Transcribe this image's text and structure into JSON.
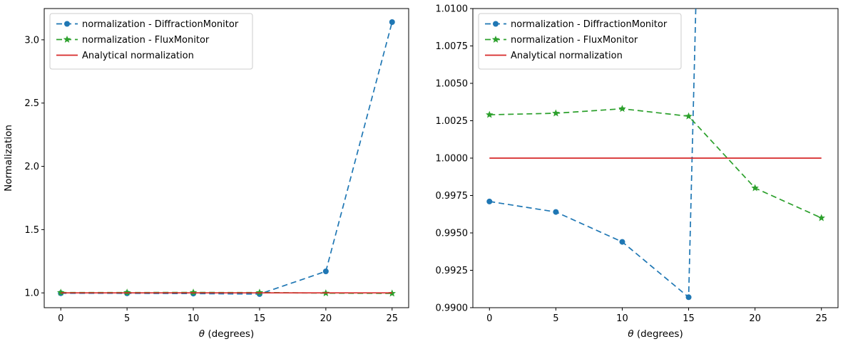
{
  "figure": {
    "background": "#ffffff"
  },
  "chart_data": [
    {
      "type": "line",
      "title": "",
      "xlabel": "θ (degrees)",
      "ylabel": "Normalization",
      "xlim": [
        -1.25,
        26.25
      ],
      "ylim": [
        0.883,
        3.247
      ],
      "grid": false,
      "legend_position": "upper-left",
      "x": [
        0,
        5,
        10,
        15,
        20,
        25
      ],
      "xticks": {
        "values": [
          0,
          5,
          10,
          15,
          20,
          25
        ],
        "labels": [
          "0",
          "5",
          "10",
          "15",
          "20",
          "25"
        ]
      },
      "yticks": {
        "values": [
          1.0,
          1.5,
          2.0,
          2.5,
          3.0
        ],
        "labels": [
          "1.0",
          "1.5",
          "2.0",
          "2.5",
          "3.0"
        ]
      },
      "series": [
        {
          "name": "normalization - DiffractionMonitor",
          "color": "#1f77b4",
          "linestyle": "dashed",
          "marker": "circle",
          "values": [
            0.9971,
            0.9964,
            0.9944,
            0.9907,
            1.17,
            3.14
          ]
        },
        {
          "name": "normalization - FluxMonitor",
          "color": "#2ca02c",
          "linestyle": "dashed",
          "marker": "star",
          "values": [
            1.0029,
            1.003,
            1.0033,
            1.0028,
            0.998,
            0.996
          ]
        },
        {
          "name": "Analytical normalization",
          "color": "#d62728",
          "linestyle": "solid",
          "marker": "none",
          "values": [
            1.0,
            1.0,
            1.0,
            1.0,
            1.0,
            1.0
          ]
        }
      ]
    },
    {
      "type": "line",
      "title": "",
      "xlabel": "θ (degrees)",
      "ylabel": "",
      "xlim": [
        -1.25,
        26.25
      ],
      "ylim": [
        0.99,
        1.01
      ],
      "grid": false,
      "legend_position": "upper-left",
      "x": [
        0,
        5,
        10,
        15,
        20,
        25
      ],
      "xticks": {
        "values": [
          0,
          5,
          10,
          15,
          20,
          25
        ],
        "labels": [
          "0",
          "5",
          "10",
          "15",
          "20",
          "25"
        ]
      },
      "yticks": {
        "values": [
          0.99,
          0.9925,
          0.995,
          0.9975,
          1.0,
          1.0025,
          1.005,
          1.0075,
          1.01
        ],
        "labels": [
          "0.9900",
          "0.9925",
          "0.9950",
          "0.9975",
          "1.0000",
          "1.0025",
          "1.0050",
          "1.0075",
          "1.0100"
        ]
      },
      "series": [
        {
          "name": "normalization - DiffractionMonitor",
          "color": "#1f77b4",
          "linestyle": "dashed",
          "marker": "circle",
          "values": [
            0.9971,
            0.9964,
            0.9944,
            0.9907,
            1.17,
            3.14
          ]
        },
        {
          "name": "normalization - FluxMonitor",
          "color": "#2ca02c",
          "linestyle": "dashed",
          "marker": "star",
          "values": [
            1.0029,
            1.003,
            1.0033,
            1.0028,
            0.998,
            0.996
          ]
        },
        {
          "name": "Analytical normalization",
          "color": "#d62728",
          "linestyle": "solid",
          "marker": "none",
          "values": [
            1.0,
            1.0,
            1.0,
            1.0,
            1.0,
            1.0
          ]
        }
      ]
    }
  ]
}
